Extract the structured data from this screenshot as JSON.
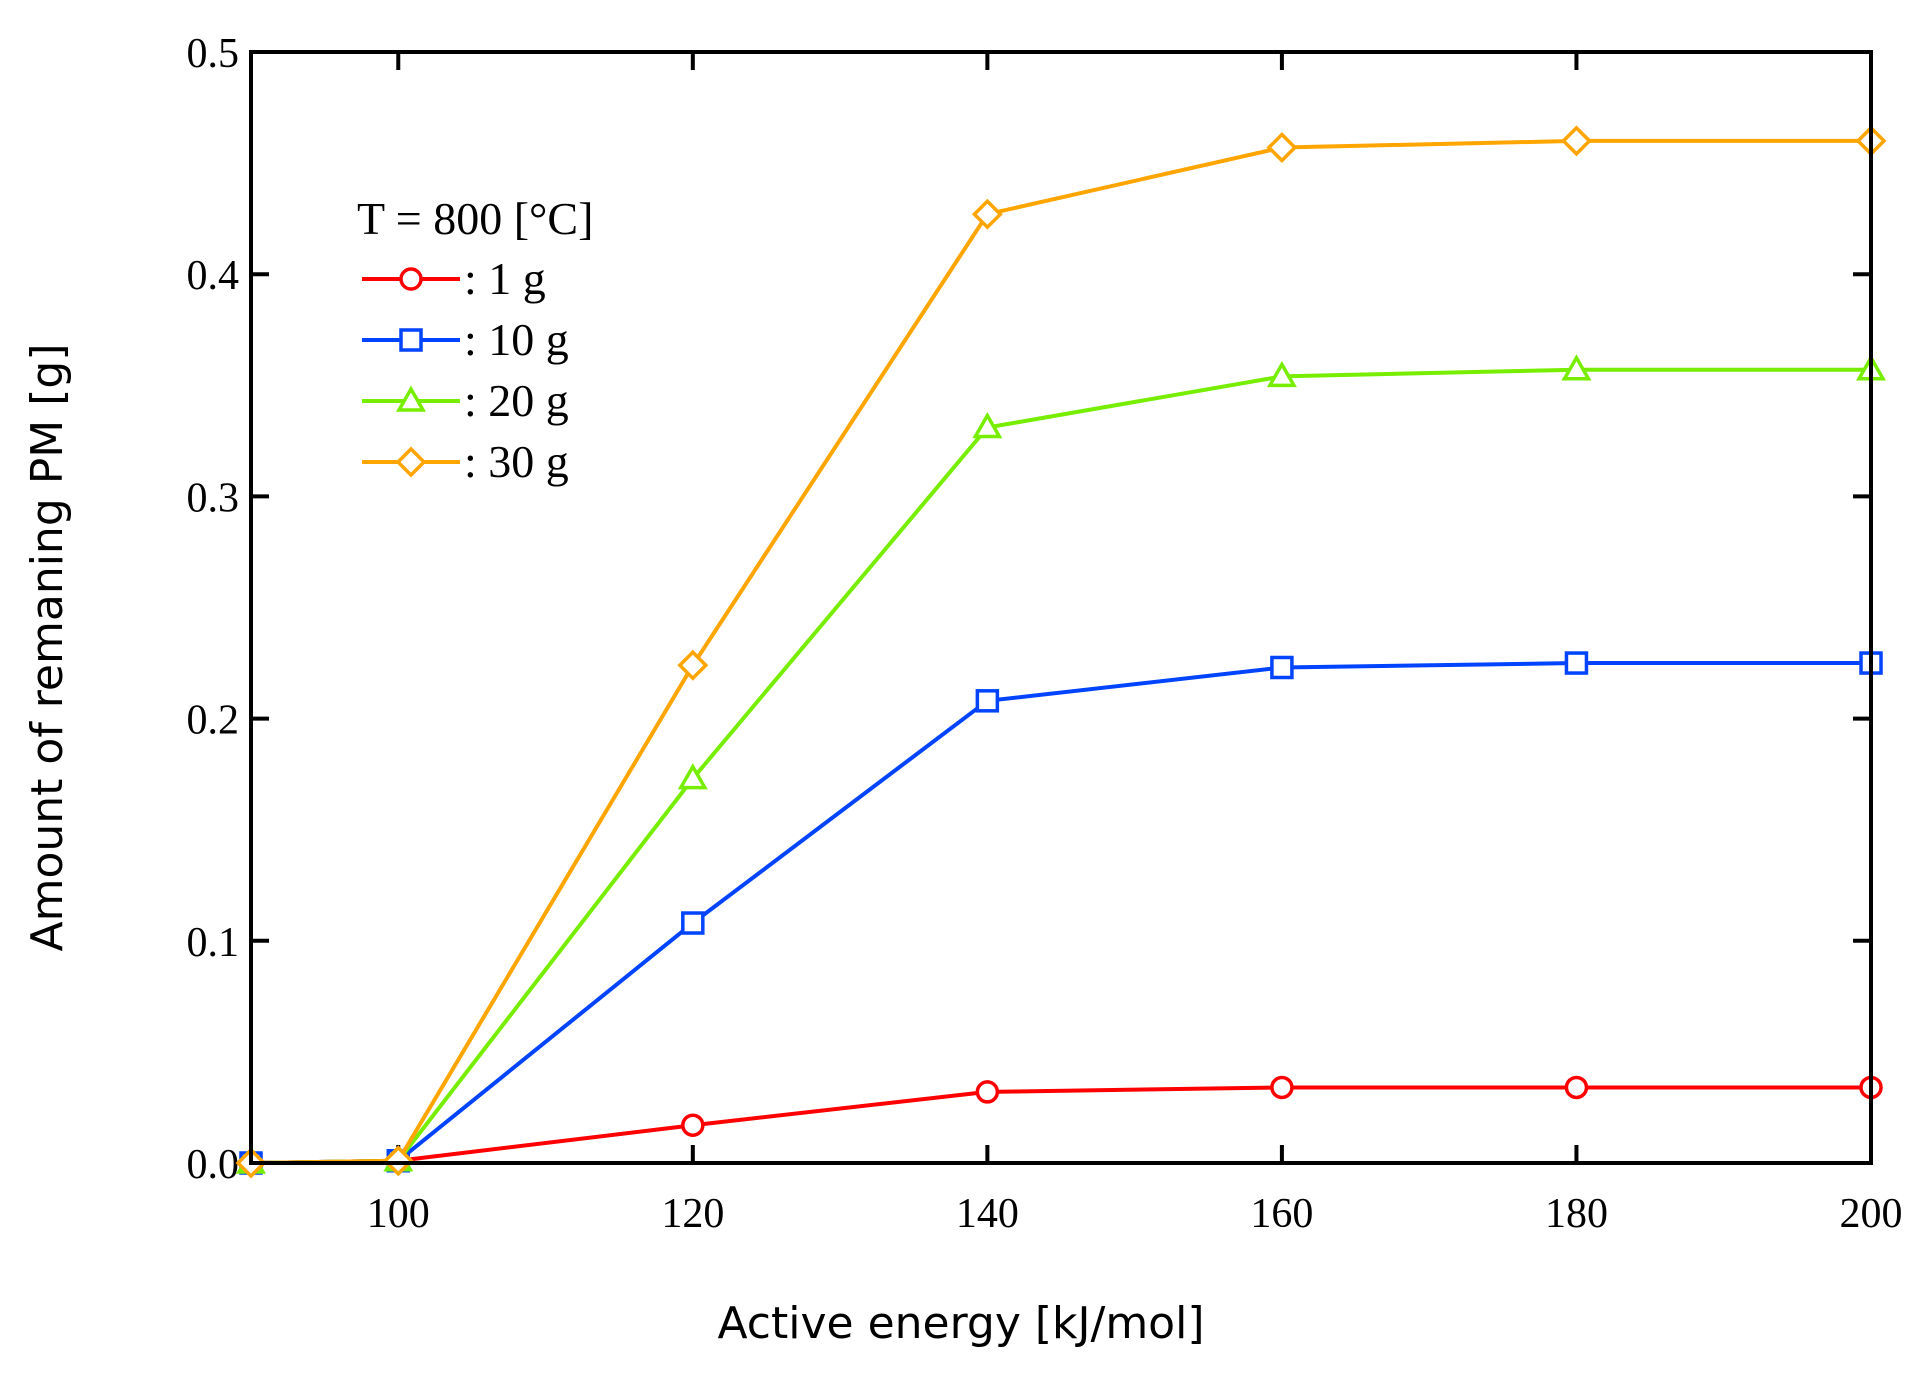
{
  "chart_data": {
    "type": "line",
    "title": "",
    "xlabel": "Active energy [kJ/mol]",
    "ylabel": "Amount of remaning PM [g]",
    "xlim": [
      90,
      200
    ],
    "ylim": [
      0.0,
      0.5
    ],
    "x_ticks": [
      100,
      120,
      140,
      160,
      180,
      200
    ],
    "x_tick_labels": [
      "100",
      "120",
      "140",
      "160",
      "180",
      "200"
    ],
    "y_ticks": [
      0.0,
      0.1,
      0.2,
      0.3,
      0.4,
      0.5
    ],
    "y_tick_labels": [
      "0.0",
      "0.1",
      "0.2",
      "0.3",
      "0.4",
      "0.5"
    ],
    "grid": false,
    "legend": {
      "position": "top-left",
      "title": "T = 800 [°C]"
    },
    "x": [
      90,
      100,
      120,
      140,
      160,
      180,
      200
    ],
    "series": [
      {
        "name": ": 1 g",
        "color": "#ff0000",
        "marker": "circle",
        "values": [
          0.0,
          0.001,
          0.017,
          0.032,
          0.034,
          0.034,
          0.034
        ]
      },
      {
        "name": ": 10 g",
        "color": "#0044ff",
        "marker": "square",
        "values": [
          0.0,
          0.001,
          0.108,
          0.208,
          0.223,
          0.225,
          0.225
        ]
      },
      {
        "name": ": 20 g",
        "color": "#77ee00",
        "marker": "triangle",
        "values": [
          0.0,
          0.001,
          0.173,
          0.331,
          0.354,
          0.357,
          0.357
        ]
      },
      {
        "name": ": 30 g",
        "color": "#ffa500",
        "marker": "diamond",
        "values": [
          0.0,
          0.001,
          0.224,
          0.427,
          0.457,
          0.46,
          0.46
        ]
      }
    ]
  }
}
